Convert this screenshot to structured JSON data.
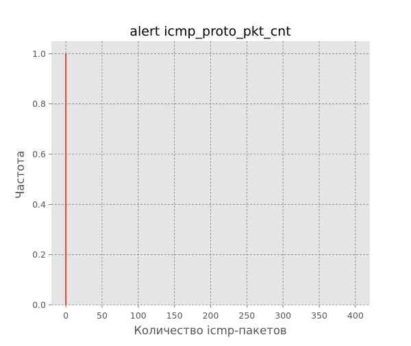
{
  "chart_data": {
    "type": "bar",
    "title": "alert icmp_proto_pkt_cnt",
    "xlabel": "Количество icmp-пакетов",
    "ylabel": "Частота",
    "x_ticks": [
      "0",
      "50",
      "100",
      "150",
      "200",
      "250",
      "300",
      "350",
      "400"
    ],
    "y_ticks": [
      "0.0",
      "0.2",
      "0.4",
      "0.6",
      "0.8",
      "1.0"
    ],
    "xlim": [
      -20,
      420
    ],
    "ylim": [
      0,
      1.05
    ],
    "grid": true,
    "bars": [
      {
        "x": 0,
        "width": 2,
        "value": 1.0
      }
    ],
    "colors": {
      "bar": "#E24A33",
      "plot_background": "#E5E5E5",
      "grid": "#808080"
    }
  }
}
